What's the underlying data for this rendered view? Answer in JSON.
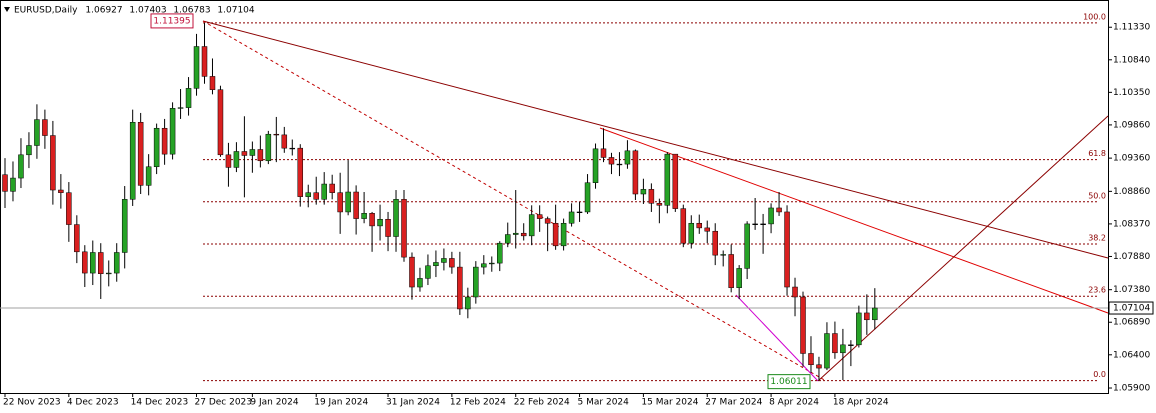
{
  "chart_data": {
    "type": "candlestick",
    "title": "EURUSD,Daily",
    "up_color": "#26a226",
    "down_color": "#d92020",
    "ylim": [
      1.05825,
      1.1174
    ],
    "yticks": [
      {
        "value": 1.1133,
        "label": "1.11330"
      },
      {
        "value": 1.1084,
        "label": "1.10840"
      },
      {
        "value": 1.1035,
        "label": "1.10350"
      },
      {
        "value": 1.0986,
        "label": "1.09860"
      },
      {
        "value": 1.0936,
        "label": "1.09360"
      },
      {
        "value": 1.0886,
        "label": "1.08860"
      },
      {
        "value": 1.0837,
        "label": "1.08370"
      },
      {
        "value": 1.0788,
        "label": "1.07880"
      },
      {
        "value": 1.0738,
        "label": "1.07380"
      },
      {
        "value": 1.0689,
        "label": "1.06890"
      },
      {
        "value": 1.064,
        "label": "1.06400"
      },
      {
        "value": 1.059,
        "label": "1.05900"
      }
    ],
    "categories": [
      "22 Nov 2023",
      null,
      null,
      null,
      null,
      null,
      null,
      null,
      "4 Dec 2023",
      null,
      null,
      null,
      null,
      null,
      null,
      null,
      "14 Dec 2023",
      null,
      null,
      null,
      null,
      null,
      null,
      null,
      "27 Dec 2023",
      null,
      null,
      null,
      null,
      null,
      null,
      "9 Jan 2024",
      null,
      null,
      null,
      null,
      null,
      null,
      null,
      "19 Jan 2024",
      null,
      null,
      null,
      null,
      null,
      null,
      null,
      null,
      "31 Jan 2024",
      null,
      null,
      null,
      null,
      null,
      null,
      null,
      "12 Feb 2024",
      null,
      null,
      null,
      null,
      null,
      null,
      null,
      "22 Feb 2024",
      null,
      null,
      null,
      null,
      null,
      null,
      null,
      "5 Mar 2024",
      null,
      null,
      null,
      null,
      null,
      null,
      null,
      "15 Mar 2024",
      null,
      null,
      null,
      null,
      null,
      null,
      null,
      "27 Mar 2024",
      null,
      null,
      null,
      null,
      null,
      null,
      null,
      "8 Apr 2024",
      null,
      null,
      null,
      null,
      null,
      null,
      null,
      "18 Apr 2024",
      null,
      null,
      null,
      null,
      null
    ],
    "open": [
      1.0911,
      1.0886,
      1.0906,
      1.0941,
      1.0955,
      1.0994,
      1.097,
      1.0888,
      1.0884,
      1.0836,
      1.0795,
      1.0763,
      1.0794,
      1.0762,
      1.0763,
      1.0794,
      1.0874,
      1.099,
      1.0895,
      1.0923,
      1.0981,
      1.0942,
      1.1011,
      1.1012,
      1.1041,
      1.1104,
      1.1059,
      1.1039,
      1.0941,
      1.0922,
      1.0946,
      1.094,
      1.0949,
      1.0932,
      1.0972,
      1.0971,
      1.0951,
      1.0951,
      1.0878,
      1.0884,
      1.0874,
      1.0897,
      1.0884,
      1.0855,
      1.0885,
      1.0845,
      1.0853,
      1.0834,
      1.0844,
      1.0818,
      1.0874,
      1.0787,
      1.0742,
      1.0755,
      1.0774,
      1.0779,
      1.0785,
      1.0772,
      1.0709,
      1.0727,
      1.0772,
      1.0777,
      1.0778,
      1.0808,
      1.0821,
      1.0823,
      1.0819,
      1.0851,
      1.0845,
      1.0838,
      1.0804,
      1.0838,
      1.0855,
      1.0855,
      1.0899,
      1.095,
      1.0937,
      1.0927,
      1.0927,
      1.0947,
      1.0882,
      1.0889,
      1.0868,
      1.0865,
      1.0942,
      1.086,
      1.0808,
      1.0838,
      1.0831,
      1.0826,
      1.079,
      1.0791,
      1.0741,
      1.077,
      1.0837,
      1.0837,
      1.0837,
      1.0861,
      1.0855,
      1.0742,
      1.0727,
      1.0642,
      1.0625,
      1.062,
      1.0672,
      1.0643,
      1.0655,
      1.0655,
      1.0703,
      1.06927
    ],
    "high": [
      1.0936,
      1.0931,
      1.0966,
      1.0975,
      1.1017,
      1.1009,
      1.0992,
      1.0912,
      1.09,
      1.085,
      1.0805,
      1.0812,
      1.0808,
      1.0782,
      1.0808,
      1.0894,
      1.1009,
      1.1004,
      1.0942,
      1.0988,
      1.0995,
      1.102,
      1.104,
      1.1058,
      1.1123,
      1.11395,
      1.1086,
      1.1045,
      1.0959,
      1.096,
      1.0999,
      1.0961,
      1.097,
      1.0977,
      1.0998,
      1.0983,
      1.0964,
      1.0957,
      1.0896,
      1.0908,
      1.0915,
      1.0911,
      1.0914,
      1.0933,
      1.0895,
      1.0885,
      1.0855,
      1.0866,
      1.0855,
      1.0888,
      1.0888,
      1.0794,
      1.0771,
      1.0791,
      1.0797,
      1.08,
      1.0795,
      1.0795,
      1.0741,
      1.0781,
      1.079,
      1.0788,
      1.0811,
      1.0839,
      1.0888,
      1.0838,
      1.0865,
      1.0865,
      1.0848,
      1.0866,
      1.0845,
      1.0868,
      1.087,
      1.0912,
      1.0958,
      1.0981,
      1.0944,
      1.0945,
      1.0963,
      1.0949,
      1.0905,
      1.0898,
      1.0875,
      1.0945,
      1.0942,
      1.0866,
      1.085,
      1.0851,
      1.0842,
      1.0838,
      1.0797,
      1.0806,
      1.0775,
      1.0841,
      1.0876,
      1.0852,
      1.0868,
      1.0885,
      1.0865,
      1.0756,
      1.0735,
      1.0668,
      1.0637,
      1.0689,
      1.069,
      1.0679,
      1.0662,
      1.0714,
      1.0731,
      1.07403
    ],
    "low": [
      1.0861,
      1.0871,
      1.0891,
      1.0921,
      1.0935,
      1.095,
      1.0866,
      1.086,
      1.081,
      1.0778,
      1.0742,
      1.0745,
      1.0724,
      1.0743,
      1.075,
      1.077,
      1.0864,
      1.0882,
      1.088,
      1.0912,
      1.0926,
      1.0934,
      1.0995,
      1.1,
      1.103,
      1.1048,
      1.1032,
      1.0938,
      1.0893,
      1.0915,
      1.0877,
      1.0914,
      1.0922,
      1.0927,
      1.093,
      1.0944,
      1.094,
      1.0863,
      1.0862,
      1.0866,
      1.0866,
      1.0874,
      1.0822,
      1.085,
      1.0821,
      1.0838,
      1.0795,
      1.0812,
      1.0796,
      1.0795,
      1.078,
      1.0723,
      1.0735,
      1.0745,
      1.0757,
      1.0767,
      1.0762,
      1.07,
      1.0695,
      1.0717,
      1.0761,
      1.0765,
      1.0766,
      1.0802,
      1.08,
      1.0812,
      1.0805,
      1.0825,
      1.0796,
      1.0798,
      1.0797,
      1.0833,
      1.084,
      1.0852,
      1.089,
      1.093,
      1.0912,
      1.0909,
      1.092,
      1.0873,
      1.0867,
      1.0855,
      1.0838,
      1.0853,
      1.0855,
      1.0802,
      1.08,
      1.0822,
      1.0808,
      1.0775,
      1.0773,
      1.0734,
      1.0724,
      1.0754,
      1.0828,
      1.0792,
      1.0823,
      1.0849,
      1.0729,
      1.0698,
      1.0622,
      1.0613,
      1.06011,
      1.0617,
      1.0634,
      1.0602,
      1.0623,
      1.0651,
      1.067,
      1.06783
    ],
    "close": [
      1.0886,
      1.0906,
      1.0941,
      1.0955,
      1.0994,
      1.097,
      1.0888,
      1.0884,
      1.0836,
      1.0795,
      1.0763,
      1.0794,
      1.0762,
      1.0763,
      1.0794,
      1.0874,
      1.099,
      1.0895,
      1.0923,
      1.0981,
      1.0942,
      1.1011,
      1.1012,
      1.1041,
      1.1104,
      1.1059,
      1.1039,
      1.0941,
      1.0922,
      1.0946,
      1.094,
      1.0949,
      1.0932,
      1.0972,
      1.0971,
      1.0951,
      1.0951,
      1.0878,
      1.0884,
      1.0874,
      1.0897,
      1.0884,
      1.0855,
      1.0885,
      1.0845,
      1.0853,
      1.0834,
      1.0844,
      1.0818,
      1.0874,
      1.0787,
      1.0742,
      1.0755,
      1.0774,
      1.0779,
      1.0785,
      1.0772,
      1.0709,
      1.0727,
      1.0772,
      1.0777,
      1.0778,
      1.0808,
      1.0821,
      1.0823,
      1.0819,
      1.0851,
      1.0845,
      1.0838,
      1.0804,
      1.0838,
      1.0855,
      1.0855,
      1.0899,
      1.095,
      1.0937,
      1.0927,
      1.0927,
      1.0947,
      1.0882,
      1.0889,
      1.0868,
      1.0865,
      1.0942,
      1.086,
      1.0808,
      1.0838,
      1.0831,
      1.0826,
      1.079,
      1.0791,
      1.0741,
      1.077,
      1.0837,
      1.0837,
      1.0837,
      1.0861,
      1.0855,
      1.0742,
      1.0727,
      1.0642,
      1.0625,
      1.062,
      1.0672,
      1.0643,
      1.0655,
      1.0655,
      1.0703,
      1.06927,
      1.07104
    ],
    "fibo_levels": [
      {
        "value": 100,
        "label": "100.0"
      },
      61.8,
      {
        "value": 50,
        "label": "50.0"
      },
      38.2,
      23.6,
      {
        "value": 0,
        "label": "0.0"
      }
    ],
    "fibo_color": "#8b0000"
  }
}
